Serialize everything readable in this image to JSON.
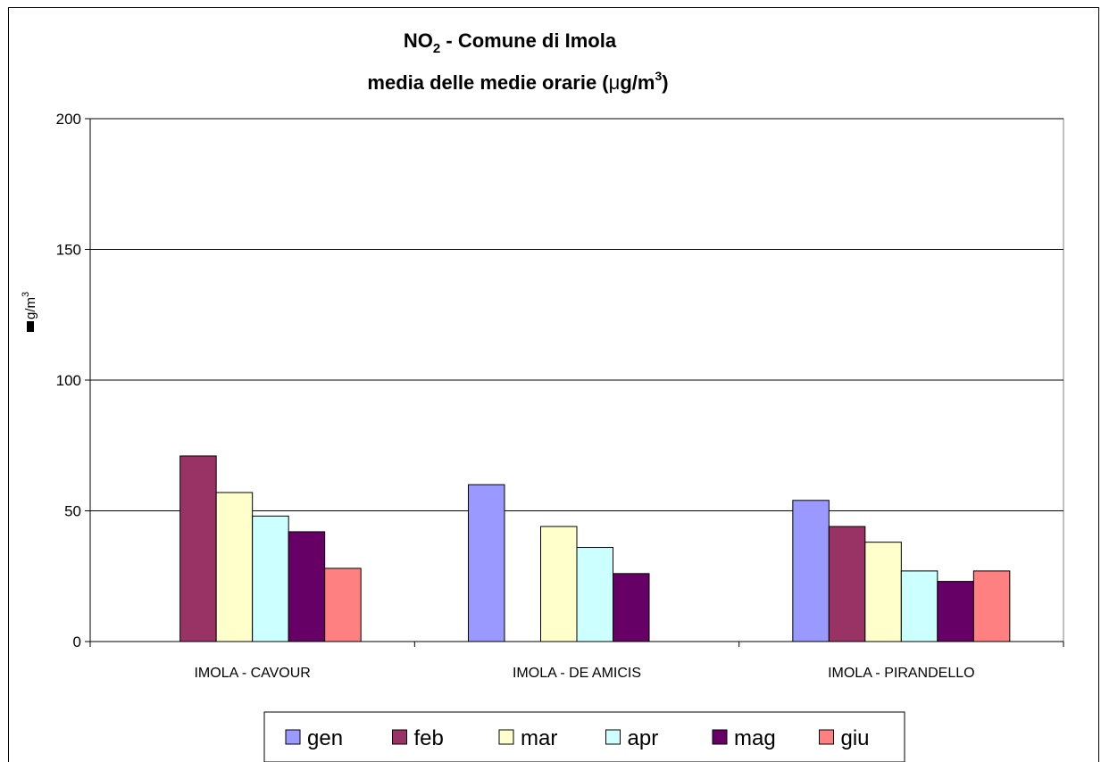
{
  "chart_data": {
    "type": "bar",
    "title_line1_prefix": "NO",
    "title_line1_sub": "2",
    "title_line1_suffix": " - Comune di Imola",
    "title_line2_prefix": "media delle medie orarie (",
    "title_line2_mu": "μ",
    "title_line2_unit": "g/m",
    "title_line2_sup": "3",
    "title_line2_suffix": ")",
    "ylabel_main": "g/m",
    "ylabel_sup": "3",
    "ylim": [
      0,
      200
    ],
    "yticks": [
      "0",
      "50",
      "100",
      "150",
      "200"
    ],
    "grid": true,
    "legend_position": "bottom",
    "categories": [
      "IMOLA - CAVOUR",
      "IMOLA - DE AMICIS",
      "IMOLA - PIRANDELLO"
    ],
    "series": [
      {
        "name": "gen",
        "color": "#9999ff",
        "values": [
          null,
          60,
          54
        ]
      },
      {
        "name": "feb",
        "color": "#993366",
        "values": [
          71,
          null,
          44
        ]
      },
      {
        "name": "mar",
        "color": "#ffffcc",
        "values": [
          57,
          44,
          38
        ]
      },
      {
        "name": "apr",
        "color": "#ccffff",
        "values": [
          48,
          36,
          27
        ]
      },
      {
        "name": "mag",
        "color": "#660066",
        "values": [
          42,
          26,
          23
        ]
      },
      {
        "name": "giu",
        "color": "#ff8080",
        "values": [
          28,
          null,
          27
        ]
      }
    ]
  }
}
